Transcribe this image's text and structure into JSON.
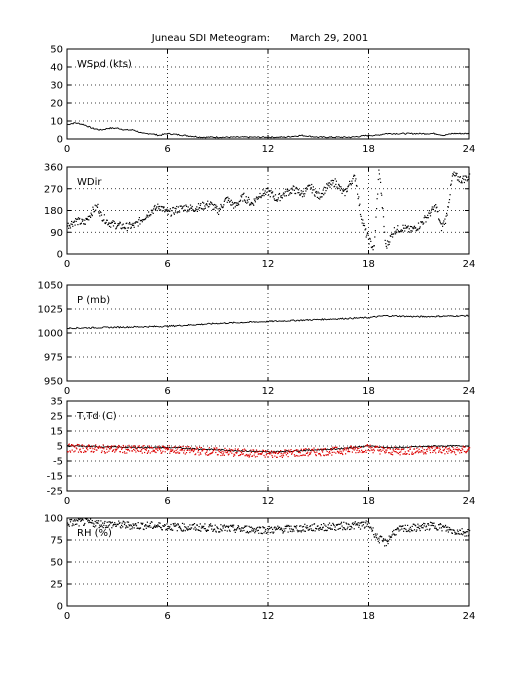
{
  "header": {
    "title": "Juneau SDI Meteogram:",
    "date": "March 29, 2001"
  },
  "chart_data": [
    {
      "type": "scatter",
      "label": "WSpd (kts)",
      "ylim": [
        0,
        50
      ],
      "yticks": [
        0,
        10,
        20,
        30,
        40,
        50
      ],
      "xlim": [
        0,
        24
      ],
      "xticks": [
        0,
        6,
        12,
        18,
        24
      ],
      "grid": true,
      "series": [
        {
          "color": "#000000",
          "style": "line",
          "x": [
            0,
            0.5,
            1,
            1.5,
            2,
            2.5,
            3,
            3.5,
            4,
            4.5,
            5,
            5.5,
            6,
            7,
            8,
            9,
            10,
            11,
            12,
            13,
            14,
            15,
            16,
            17,
            18,
            18.5,
            19,
            19.5,
            20,
            21,
            22,
            22.5,
            23,
            23.5,
            24
          ],
          "y": [
            8,
            9,
            8,
            6,
            5,
            6,
            6,
            5,
            5,
            3,
            3,
            2,
            3,
            2,
            1,
            1,
            1,
            1,
            1,
            1,
            2,
            1,
            1,
            1,
            2,
            2,
            3,
            3,
            3,
            3,
            3,
            2,
            3,
            3,
            3
          ]
        }
      ]
    },
    {
      "type": "scatter",
      "label": "WDir",
      "ylim": [
        0,
        360
      ],
      "yticks": [
        0,
        90,
        180,
        270,
        360
      ],
      "xlim": [
        0,
        24
      ],
      "xticks": [
        0,
        6,
        12,
        18,
        24
      ],
      "grid": true,
      "series": [
        {
          "color": "#000000",
          "style": "dots",
          "x": [
            0,
            0.5,
            1,
            1.5,
            1.8,
            2,
            2.5,
            3,
            3.5,
            4,
            4.5,
            5,
            5.5,
            6,
            6.5,
            7,
            7.5,
            8,
            8.5,
            9,
            9.5,
            10,
            10.5,
            11,
            11.5,
            12,
            12.5,
            13,
            13.5,
            14,
            14.5,
            15,
            15.5,
            16,
            16.5,
            17,
            17.2,
            17.5,
            17.8,
            18,
            18.3,
            18.6,
            19,
            19.5,
            20,
            20.5,
            21,
            21.5,
            22,
            22.3,
            22.6,
            23,
            23.5,
            24
          ],
          "y": [
            120,
            140,
            130,
            180,
            200,
            160,
            130,
            120,
            115,
            120,
            150,
            180,
            200,
            170,
            185,
            195,
            190,
            200,
            210,
            180,
            230,
            200,
            240,
            210,
            250,
            260,
            230,
            255,
            270,
            250,
            280,
            240,
            280,
            300,
            250,
            310,
            320,
            170,
            90,
            60,
            20,
            360,
            30,
            100,
            110,
            100,
            120,
            160,
            200,
            110,
            150,
            330,
            310,
            320
          ]
        }
      ]
    },
    {
      "type": "line",
      "label": "P (mb)",
      "ylim": [
        950,
        1050
      ],
      "yticks": [
        950,
        975,
        1000,
        1025,
        1050
      ],
      "xlim": [
        0,
        24
      ],
      "xticks": [
        0,
        6,
        12,
        18,
        24
      ],
      "grid": true,
      "series": [
        {
          "color": "#000000",
          "style": "line",
          "x": [
            0,
            3,
            6,
            9,
            12,
            15,
            18,
            19,
            21,
            24
          ],
          "y": [
            1005,
            1006,
            1007,
            1010,
            1012,
            1014,
            1016,
            1018,
            1017,
            1018
          ]
        }
      ]
    },
    {
      "type": "line",
      "label": "T,Td (C)",
      "ylim": [
        -25,
        35
      ],
      "yticks": [
        -25,
        -15,
        -5,
        5,
        15,
        25,
        35
      ],
      "xlim": [
        0,
        24
      ],
      "xticks": [
        0,
        6,
        12,
        18,
        24
      ],
      "grid": true,
      "series": [
        {
          "color": "#000000",
          "style": "line",
          "x": [
            0,
            2,
            4,
            6,
            8,
            10,
            12,
            14,
            16,
            18,
            19,
            20,
            22,
            23,
            24
          ],
          "y": [
            5,
            4.5,
            4,
            4,
            3,
            2,
            1,
            2,
            3,
            5,
            4,
            4,
            5,
            5,
            5
          ]
        },
        {
          "color": "#dd0000",
          "style": "dots",
          "x": [
            0,
            2,
            4,
            6,
            8,
            10,
            12,
            14,
            16,
            18,
            19,
            20,
            22,
            23,
            24
          ],
          "y": [
            4,
            3.5,
            3,
            3,
            2,
            1,
            0,
            1,
            2,
            4,
            2,
            2,
            3,
            2,
            3
          ]
        }
      ]
    },
    {
      "type": "scatter",
      "label": "RH (%)",
      "ylim": [
        0,
        100
      ],
      "yticks": [
        0,
        25,
        50,
        75,
        100
      ],
      "xlim": [
        0,
        24
      ],
      "xticks": [
        0,
        6,
        12,
        18,
        24
      ],
      "grid": true,
      "series": [
        {
          "color": "#000000",
          "style": "dots",
          "x": [
            0,
            1,
            2,
            3,
            4,
            5,
            6,
            7,
            8,
            9,
            10,
            11,
            12,
            13,
            14,
            15,
            16,
            17,
            18,
            18.5,
            19,
            19.5,
            20,
            21,
            22,
            23,
            24
          ],
          "y": [
            95,
            96,
            94,
            93,
            92,
            92,
            91,
            90,
            90,
            89,
            88,
            88,
            87,
            88,
            89,
            90,
            91,
            92,
            93,
            78,
            72,
            85,
            88,
            90,
            92,
            86,
            84
          ]
        }
      ]
    }
  ]
}
